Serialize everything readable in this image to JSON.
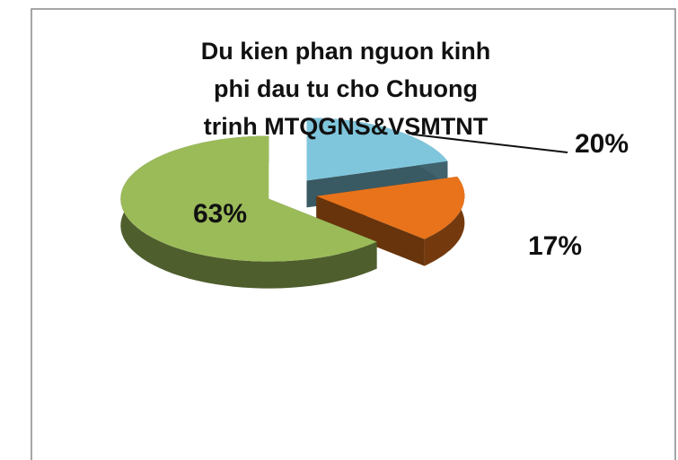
{
  "chart_data": {
    "type": "pie3d",
    "title": "Du kien phan nguon kinh phi dau tu cho Chuong trinh MTQGNS&VSMTNT",
    "categories": [
      null,
      null,
      null
    ],
    "values": [
      20,
      17,
      63
    ],
    "value_labels": [
      "20%",
      "17%",
      "63%"
    ],
    "colors": [
      "#7fc6dc",
      "#e8731a",
      "#9bbb59"
    ],
    "legend": false
  }
}
